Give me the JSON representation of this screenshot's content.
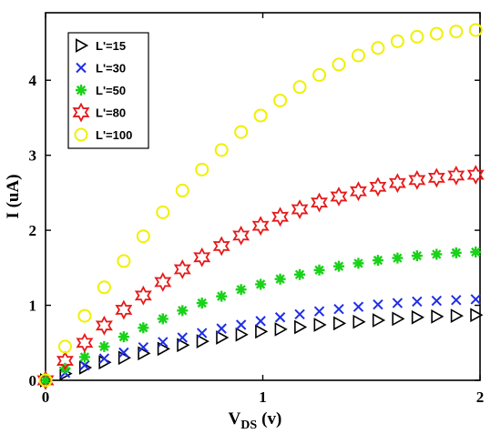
{
  "chart_data": {
    "type": "scatter",
    "title": "",
    "xlabel_main": "V",
    "xlabel_sub": "DS",
    "xlabel_unit": "(v)",
    "ylabel": "I (uA)",
    "xlim": [
      0,
      2
    ],
    "ylim": [
      0,
      4.9
    ],
    "x_ticks": [
      0,
      1,
      2
    ],
    "x_tick_labels": [
      "0",
      "1",
      "2"
    ],
    "y_ticks": [
      0,
      1,
      2,
      3,
      4
    ],
    "y_tick_labels": [
      "0",
      "1",
      "2",
      "3",
      "4"
    ],
    "grid": false,
    "legend_position": "top-left",
    "x": [
      0,
      0.09,
      0.18,
      0.27,
      0.36,
      0.45,
      0.54,
      0.63,
      0.72,
      0.81,
      0.9,
      0.99,
      1.08,
      1.17,
      1.26,
      1.35,
      1.44,
      1.53,
      1.62,
      1.71,
      1.8,
      1.89,
      1.98
    ],
    "series": [
      {
        "name": "L'=15",
        "marker": "triangle-right",
        "color": "#000000",
        "values": [
          0.0,
          0.09,
          0.17,
          0.24,
          0.3,
          0.36,
          0.42,
          0.47,
          0.52,
          0.57,
          0.61,
          0.65,
          0.68,
          0.71,
          0.74,
          0.76,
          0.78,
          0.8,
          0.82,
          0.84,
          0.85,
          0.86,
          0.87
        ]
      },
      {
        "name": "L'=30",
        "marker": "x",
        "color": "#1f2ee6",
        "values": [
          0.0,
          0.1,
          0.2,
          0.29,
          0.37,
          0.44,
          0.51,
          0.57,
          0.63,
          0.69,
          0.74,
          0.79,
          0.84,
          0.88,
          0.92,
          0.95,
          0.98,
          1.01,
          1.03,
          1.05,
          1.06,
          1.07,
          1.08
        ]
      },
      {
        "name": "L'=50",
        "marker": "asterisk",
        "color": "#19d219",
        "values": [
          0.0,
          0.16,
          0.31,
          0.45,
          0.58,
          0.7,
          0.82,
          0.93,
          1.03,
          1.12,
          1.21,
          1.28,
          1.35,
          1.41,
          1.47,
          1.52,
          1.56,
          1.6,
          1.63,
          1.66,
          1.68,
          1.7,
          1.71
        ]
      },
      {
        "name": "L'=80",
        "marker": "hexagram",
        "color": "#e61919",
        "values": [
          0.0,
          0.26,
          0.5,
          0.73,
          0.94,
          1.13,
          1.31,
          1.48,
          1.64,
          1.79,
          1.93,
          2.06,
          2.18,
          2.28,
          2.37,
          2.45,
          2.52,
          2.58,
          2.63,
          2.67,
          2.7,
          2.73,
          2.74
        ]
      },
      {
        "name": "L'=100",
        "marker": "circle",
        "color": "#f0f000",
        "values": [
          0.0,
          0.45,
          0.86,
          1.24,
          1.59,
          1.92,
          2.24,
          2.53,
          2.81,
          3.07,
          3.31,
          3.53,
          3.73,
          3.91,
          4.07,
          4.21,
          4.33,
          4.43,
          4.52,
          4.58,
          4.62,
          4.65,
          4.67
        ]
      }
    ]
  }
}
